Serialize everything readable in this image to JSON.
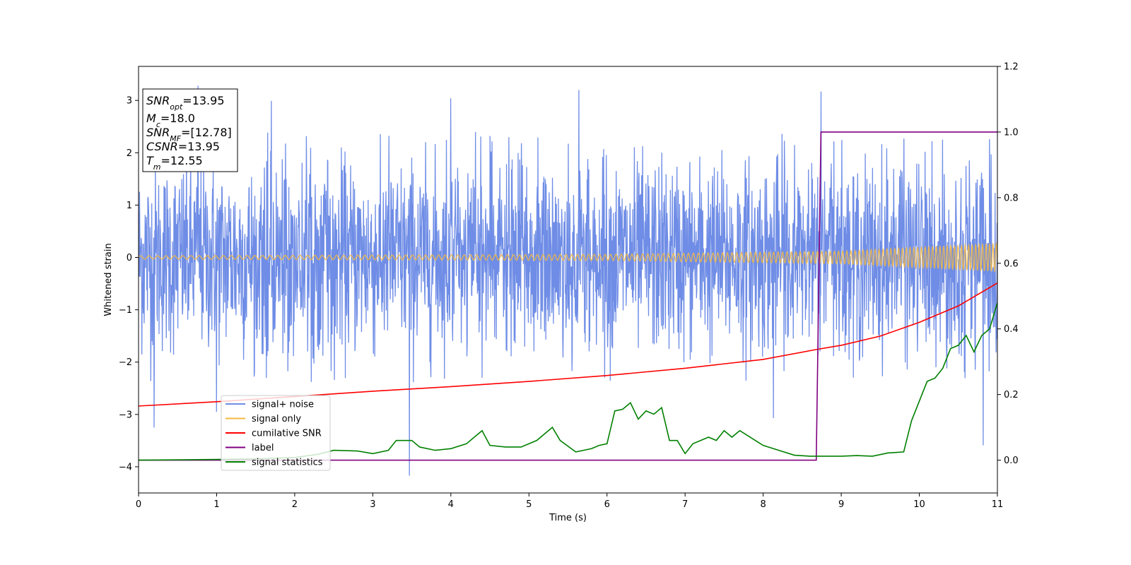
{
  "chart_data": {
    "type": "line",
    "xlabel": "Time (s)",
    "ylabel": "Whitened strain",
    "xlim": [
      0,
      11
    ],
    "ylim": [
      -4.5,
      3.65
    ],
    "ylim_right": [
      -0.1,
      1.2
    ],
    "xticks": [
      "0",
      "1",
      "2",
      "3",
      "4",
      "5",
      "6",
      "7",
      "8",
      "9",
      "10",
      "11"
    ],
    "yticks": [
      "−4",
      "−3",
      "−2",
      "−1",
      "0",
      "1",
      "2",
      "3"
    ],
    "yticks_right": [
      "0.0",
      "0.2",
      "0.4",
      "0.6",
      "0.8",
      "1.0",
      "1.2"
    ],
    "legend_placement": "lower-left",
    "info_box": {
      "snr_opt": "13.95",
      "mc": "18.0",
      "snr_mf": "[12.78]",
      "csnr": "13.95",
      "tm": "12.55"
    },
    "series": [
      {
        "name": "signal+ noise",
        "color": "#6f8de6",
        "axis": "left",
        "kind": "noise",
        "noise_std": 0.9,
        "envelope": [
          [
            0,
            -2.4,
            2.4
          ],
          [
            11,
            -2.4,
            2.4
          ]
        ],
        "peaks": [
          [
            0.76,
            3.28
          ],
          [
            1.7,
            2.99
          ],
          [
            4.0,
            3.04
          ],
          [
            5.64,
            3.2
          ],
          [
            8.74,
            3.17
          ],
          [
            8.13,
            -3.07
          ],
          [
            10.82,
            -3.59
          ],
          [
            3.47,
            -4.17
          ],
          [
            1.0,
            -2.95
          ],
          [
            0.2,
            -3.25
          ]
        ]
      },
      {
        "name": "signal only",
        "color": "#f5b942",
        "axis": "left",
        "kind": "chirp",
        "amplitude": [
          [
            0,
            0.03
          ],
          [
            6,
            0.06
          ],
          [
            9,
            0.12
          ],
          [
            11,
            0.27
          ]
        ]
      },
      {
        "name": "cumilative SNR",
        "color": "#ff0000",
        "axis": "right",
        "x": [
          0,
          1,
          2,
          3,
          4,
          5,
          6,
          7,
          8,
          8.7,
          9,
          9.5,
          10,
          10.5,
          11
        ],
        "y": [
          0.165,
          0.178,
          0.194,
          0.21,
          0.224,
          0.24,
          0.258,
          0.28,
          0.307,
          0.338,
          0.35,
          0.378,
          0.42,
          0.47,
          0.54
        ]
      },
      {
        "name": "label",
        "color": "#800080",
        "axis": "right",
        "x": [
          0,
          8.68,
          8.74,
          11
        ],
        "y": [
          0.0,
          0.0,
          1.0,
          1.0
        ]
      },
      {
        "name": "signal statistics",
        "color": "#008000",
        "axis": "right",
        "x": [
          0,
          0.5,
          1.0,
          1.5,
          2.0,
          2.3,
          2.5,
          2.8,
          3.0,
          3.2,
          3.3,
          3.5,
          3.6,
          3.8,
          4.0,
          4.2,
          4.3,
          4.4,
          4.5,
          4.7,
          4.9,
          5.1,
          5.3,
          5.4,
          5.6,
          5.8,
          5.9,
          6.0,
          6.1,
          6.2,
          6.3,
          6.4,
          6.5,
          6.6,
          6.7,
          6.8,
          6.9,
          7.0,
          7.1,
          7.3,
          7.4,
          7.5,
          7.6,
          7.7,
          7.8,
          7.9,
          8.0,
          8.2,
          8.4,
          8.6,
          8.8,
          9.0,
          9.2,
          9.4,
          9.6,
          9.8,
          9.9,
          10.0,
          10.1,
          10.2,
          10.3,
          10.4,
          10.5,
          10.6,
          10.7,
          10.8,
          10.9,
          11.0
        ],
        "y": [
          0.0,
          0.001,
          0.002,
          0.004,
          0.008,
          0.018,
          0.03,
          0.028,
          0.02,
          0.03,
          0.06,
          0.06,
          0.04,
          0.03,
          0.035,
          0.05,
          0.07,
          0.09,
          0.045,
          0.04,
          0.04,
          0.06,
          0.1,
          0.06,
          0.025,
          0.035,
          0.045,
          0.05,
          0.15,
          0.155,
          0.175,
          0.125,
          0.15,
          0.14,
          0.16,
          0.06,
          0.06,
          0.02,
          0.05,
          0.07,
          0.06,
          0.09,
          0.07,
          0.09,
          0.075,
          0.06,
          0.045,
          0.03,
          0.015,
          0.012,
          0.012,
          0.012,
          0.014,
          0.012,
          0.022,
          0.025,
          0.12,
          0.18,
          0.24,
          0.25,
          0.28,
          0.34,
          0.35,
          0.38,
          0.33,
          0.38,
          0.4,
          0.48
        ]
      }
    ]
  }
}
